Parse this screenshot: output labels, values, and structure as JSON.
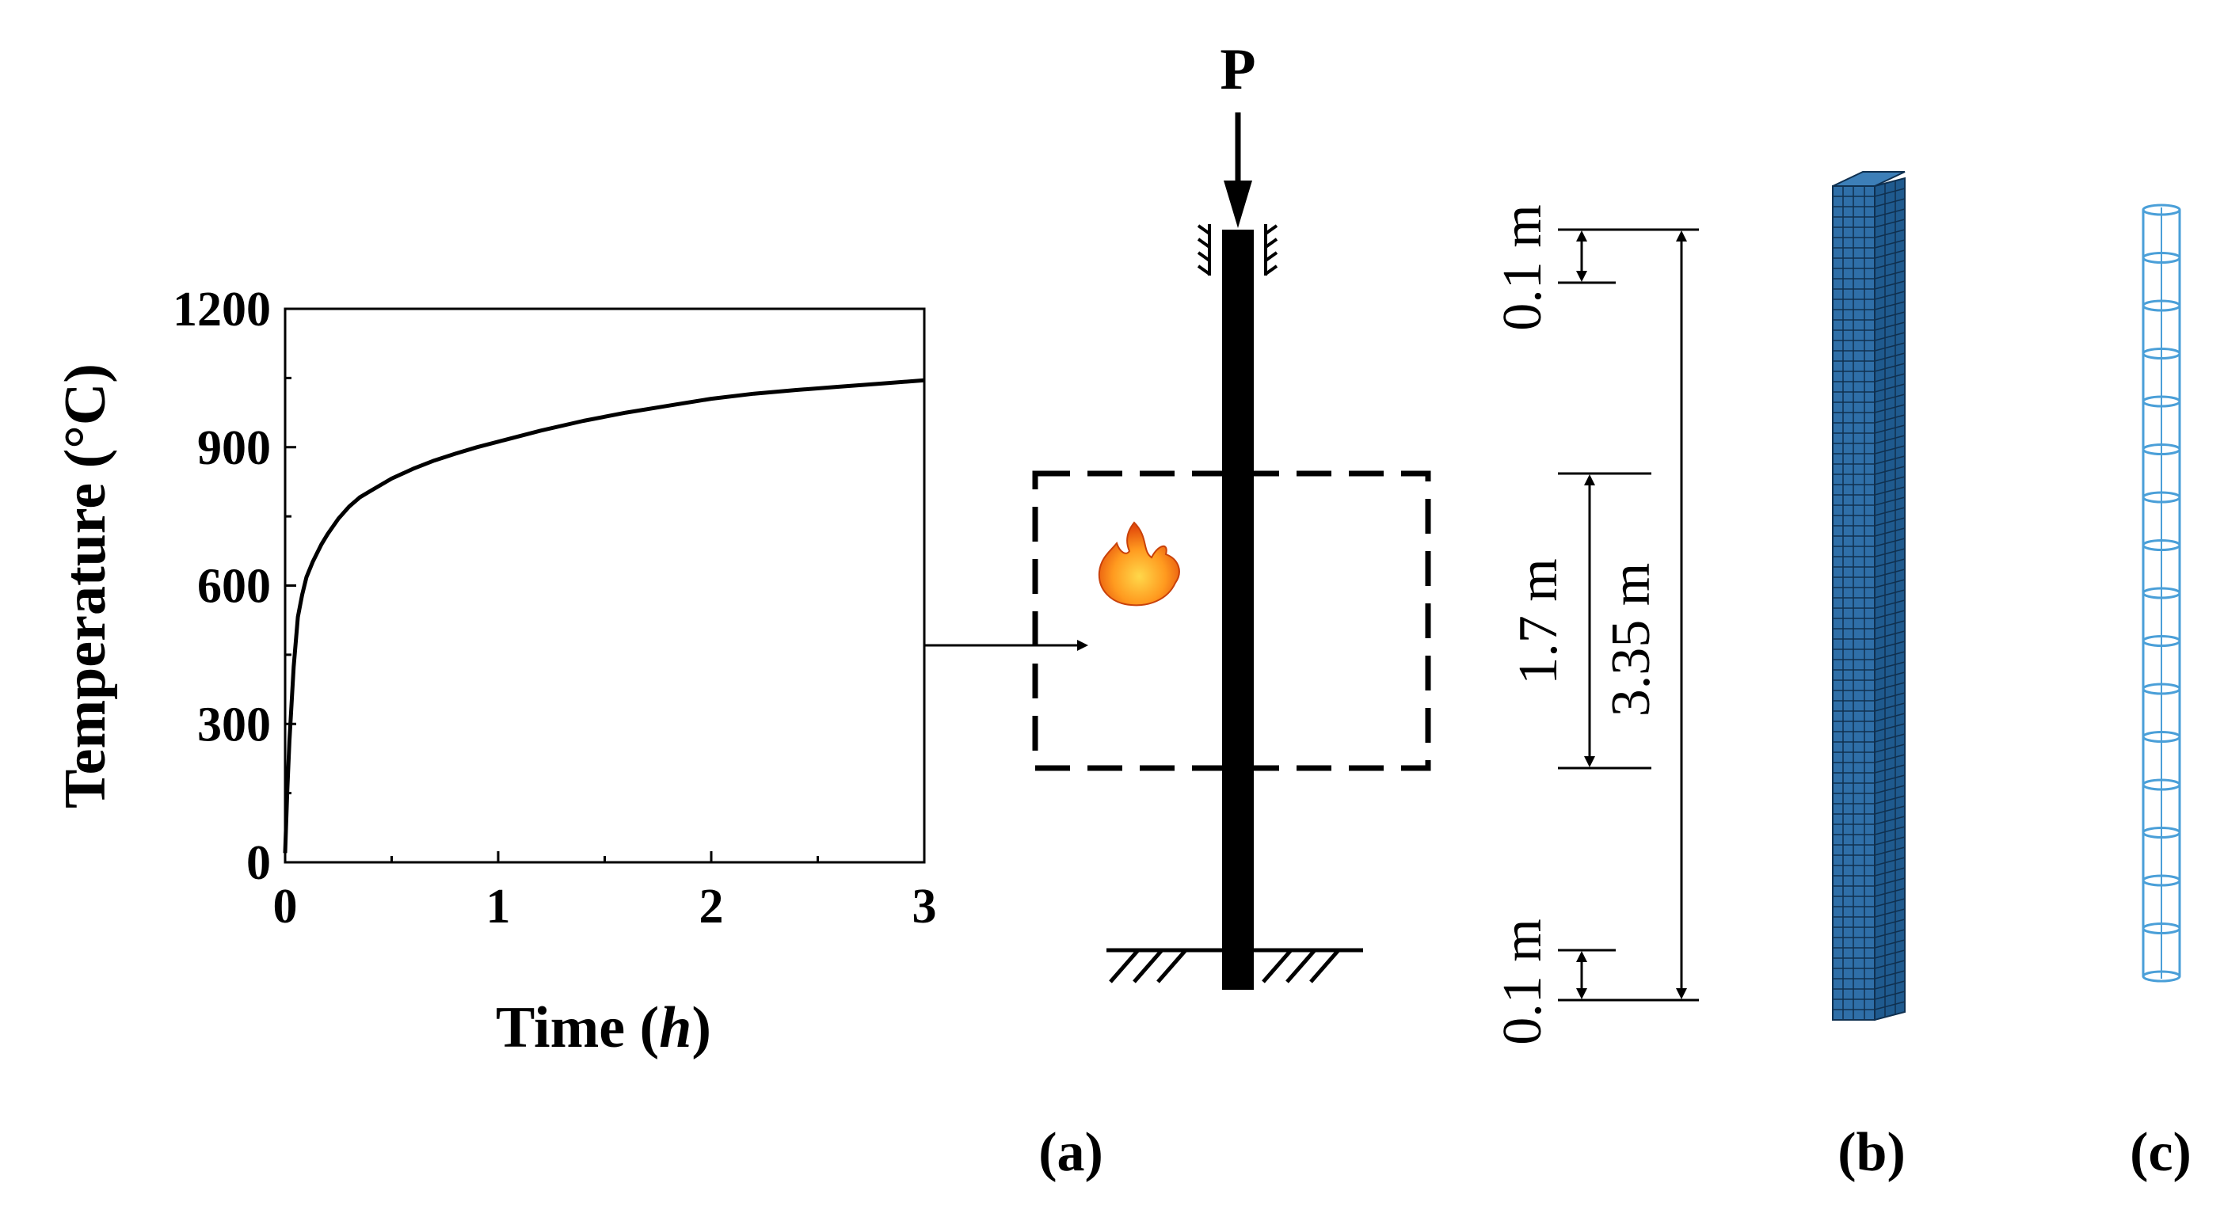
{
  "chart_data": {
    "type": "line",
    "xlabel_text": "Time (",
    "xlabel_italic": "h",
    "xlabel_close": ")",
    "ylabel": "Temperature (°C)",
    "xlim": [
      0,
      3
    ],
    "ylim": [
      0,
      1200
    ],
    "xticks": [
      "0",
      "1",
      "2",
      "3"
    ],
    "yticks": [
      "0",
      "300",
      "600",
      "900",
      "1200"
    ],
    "grid": false,
    "series": [
      {
        "x": [
          0,
          0.01,
          0.02,
          0.04,
          0.06,
          0.08,
          0.1,
          0.13,
          0.17,
          0.2,
          0.25,
          0.3,
          0.35,
          0.4,
          0.5,
          0.6,
          0.7,
          0.8,
          0.9,
          1.0,
          1.2,
          1.4,
          1.6,
          1.8,
          2.0,
          2.2,
          2.4,
          2.6,
          2.8,
          3.0
        ],
        "y": [
          20,
          154,
          262,
          424,
          532,
          580,
          618,
          652,
          689,
          712,
          745,
          771,
          791,
          805,
          832,
          853,
          871,
          886,
          900,
          912,
          936,
          957,
          975,
          990,
          1005,
          1016,
          1024,
          1031,
          1038,
          1045
        ]
      }
    ],
    "color": "#000000"
  },
  "diagram": {
    "load_label": "P",
    "dim_top": "0.1 m",
    "dim_middle": "1.7 m",
    "dim_total": "3.35 m",
    "dim_bottom": "0.1 m",
    "fire_icon": "flame-icon",
    "mesh_color": "#2f6fa8",
    "wireframe_color": "#4a9fd8",
    "panels": [
      "(a)",
      "(b)",
      "(c)"
    ]
  }
}
